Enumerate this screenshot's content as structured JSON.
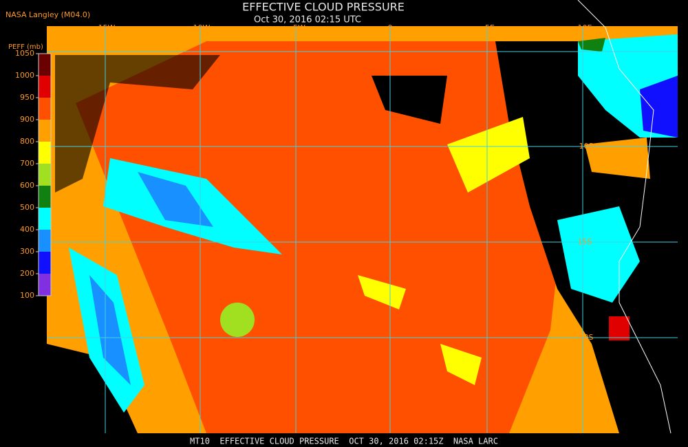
{
  "header": {
    "source": "NASA Langley (M04.0)",
    "title": "EFFECTIVE CLOUD PRESSURE",
    "subtitle": "Oct 30, 2016 02:15 UTC"
  },
  "colorbar": {
    "label": "PEFF (mb)",
    "ticks": [
      1050,
      1000,
      950,
      900,
      800,
      700,
      600,
      500,
      400,
      300,
      200,
      100
    ],
    "colors": [
      "#6b0000",
      "#e00000",
      "#ff5000",
      "#ffa000",
      "#ffff00",
      "#a0e020",
      "#108010",
      "#00ffff",
      "#1890ff",
      "#1010ff",
      "#8030e0"
    ]
  },
  "map": {
    "longitudes": [
      "15W",
      "10W",
      "5W",
      "0",
      "5E",
      "10E"
    ],
    "latitudes": [
      "10S",
      "15S",
      "20S"
    ]
  },
  "footer": "MT10  EFFECTIVE CLOUD PRESSURE  OCT 30, 2016 02:15Z  NASA LARC"
}
